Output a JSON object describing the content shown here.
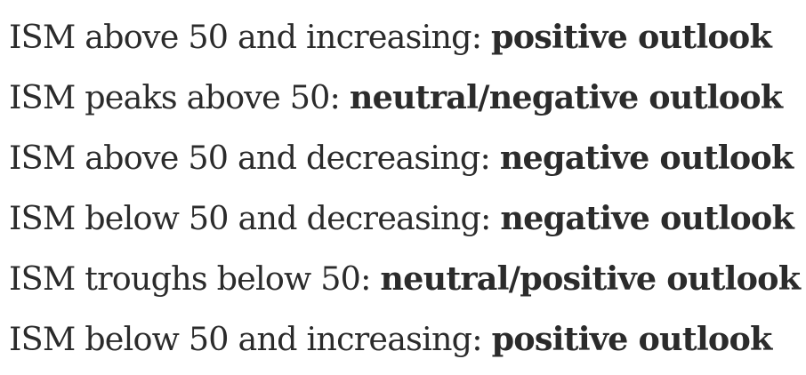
{
  "rules": [
    {
      "condition": "ISM above 50 and increasing:",
      "outlook": "positive outlook"
    },
    {
      "condition": "ISM peaks above 50:",
      "outlook": "neutral/negative outlook"
    },
    {
      "condition": "ISM above 50 and decreasing:",
      "outlook": "negative outlook"
    },
    {
      "condition": "ISM below 50 and decreasing:",
      "outlook": "negative outlook"
    },
    {
      "condition": "ISM troughs below 50:",
      "outlook": "neutral/positive outlook"
    },
    {
      "condition": "ISM below 50 and increasing:",
      "outlook": "positive outlook"
    }
  ]
}
